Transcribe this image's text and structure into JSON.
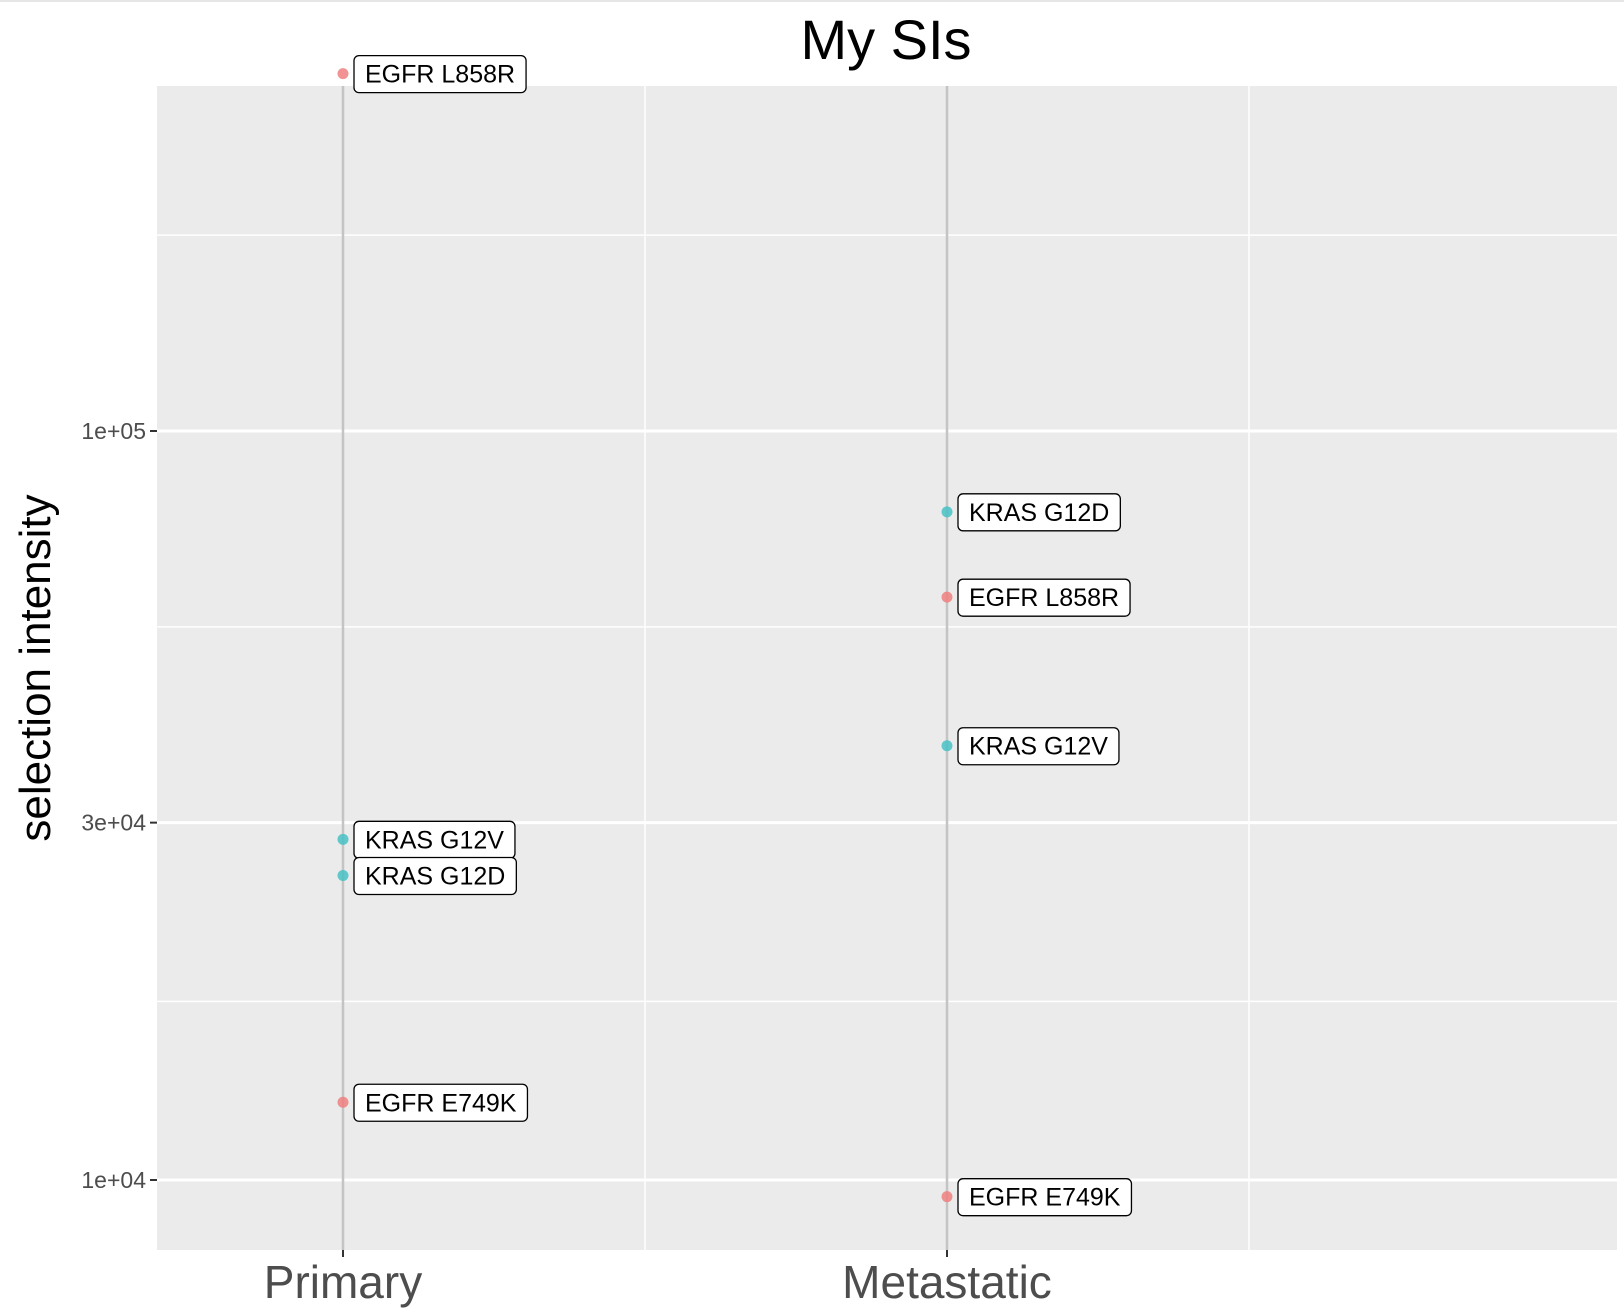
{
  "chart_data": {
    "type": "scatter",
    "title": "My SIs",
    "xlabel": "",
    "ylabel": "selection intensity",
    "y_scale": "log",
    "ylim": [
      8000,
      340000
    ],
    "categories": [
      "Primary",
      "Metastatic"
    ],
    "y_ticks": [
      {
        "value": 10000,
        "label": "1e+04"
      },
      {
        "value": 30000,
        "label": "3e+04"
      },
      {
        "value": 100000,
        "label": "1e+05"
      }
    ],
    "grid": true,
    "legend": "none",
    "colors": {
      "EGFR": "#f08080",
      "KRAS": "#48c2c5",
      "panel_background": "#ebebeb",
      "gridline": "#ffffff",
      "category_line": "#c4c4c4"
    },
    "points": [
      {
        "category": "Primary",
        "y": 300000,
        "label": "EGFR L858R",
        "gene": "EGFR"
      },
      {
        "category": "Primary",
        "y": 28500,
        "label": "KRAS G12V",
        "gene": "KRAS"
      },
      {
        "category": "Primary",
        "y": 25500,
        "label": "KRAS G12D",
        "gene": "KRAS"
      },
      {
        "category": "Primary",
        "y": 12700,
        "label": "EGFR E749K",
        "gene": "EGFR"
      },
      {
        "category": "Metastatic",
        "y": 78000,
        "label": "KRAS G12D",
        "gene": "KRAS"
      },
      {
        "category": "Metastatic",
        "y": 60000,
        "label": "EGFR L858R",
        "gene": "EGFR"
      },
      {
        "category": "Metastatic",
        "y": 38000,
        "label": "KRAS G12V",
        "gene": "KRAS"
      },
      {
        "category": "Metastatic",
        "y": 9500,
        "label": "EGFR E749K",
        "gene": "EGFR"
      }
    ]
  }
}
